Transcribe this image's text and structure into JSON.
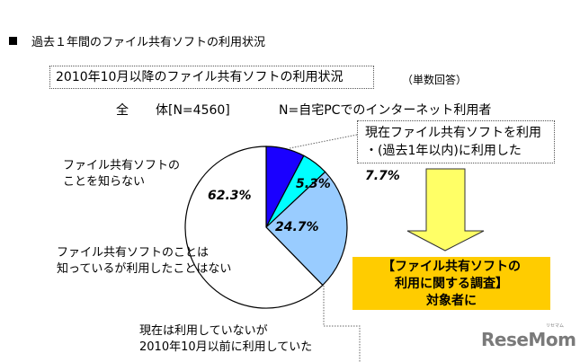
{
  "heading": "過去１年間のファイル共有ソフトの利用状況",
  "subtitle": "2010年10月以降のファイル共有ソフトの利用状況",
  "answer_type": "（単数回答）",
  "total_label_a": "全",
  "total_label_b": "体[N=4560]",
  "population_note": "N=自宅PCでのインターネット利用者",
  "callouts": {
    "current_line1": "現在ファイル共有ソフトを利用",
    "current_line2": "・(過去1年以内)に利用した",
    "unaware_line1": "ファイル共有ソフトの",
    "unaware_line2": "ことを知らない",
    "aware_line1": "ファイル共有ソフトのことは",
    "aware_line2": "知っているが利用したことはない",
    "past_line1": "現在は利用していないが",
    "past_line2": "2010年10月以前に利用していた"
  },
  "target": {
    "line1": "【ファイル共有ソフトの",
    "line2": "利用に関する調査】",
    "line3": "対象者に"
  },
  "logo": {
    "text": "ReseMom",
    "small": "リセマム"
  },
  "colors": {
    "dark_blue": "#1A00FF",
    "cyan": "#00FFFF",
    "light_blue": "#99CCFF",
    "white": "#FFFFFF",
    "arrow_yellow": "#FFFF66",
    "target_orange": "#FFCC00"
  },
  "chart_data": {
    "type": "pie",
    "title": "2010年10月以降のファイル共有ソフトの利用状況",
    "subtitle": "全体[N=4560] N=自宅PCでのインターネット利用者 （単数回答）",
    "start_angle": "12 o'clock, clockwise",
    "slices": [
      {
        "label": "現在ファイル共有ソフトを利用・(過去1年以内)に利用した",
        "value": 7.7,
        "display": "7.7%",
        "color": "#1A00FF"
      },
      {
        "label": "現在は利用していないが2010年10月以前に利用していた",
        "value": 5.3,
        "display": "5.3%",
        "color": "#00FFFF"
      },
      {
        "label": "ファイル共有ソフトのことは知っているが利用したことはない",
        "value": 24.7,
        "display": "24.7%",
        "color": "#99CCFF"
      },
      {
        "label": "ファイル共有ソフトのことを知らない",
        "value": 62.3,
        "display": "62.3%",
        "color": "#FFFFFF"
      }
    ]
  }
}
